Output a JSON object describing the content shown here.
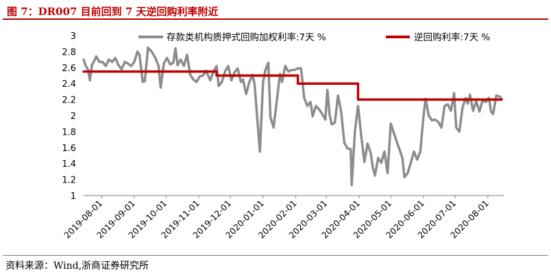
{
  "figure_title": "图 7：DR007 目前回到 7 天逆回购利率附近",
  "source_note": "资料来源：Wind,浙商证券研究所",
  "colors": {
    "title": "#C00000",
    "series_gray": "#8C8C8C",
    "series_red": "#C00000"
  },
  "chart_data": {
    "type": "line",
    "title": "",
    "xlabel": "",
    "ylabel": "",
    "ylim": [
      1,
      3
    ],
    "yticks": [
      "1",
      "1.2",
      "1.4",
      "1.6",
      "1.8",
      "2",
      "2.2",
      "2.4",
      "2.6",
      "2.8",
      "3"
    ],
    "xticks": [
      {
        "date": "2019-08-01",
        "label": "2019-08-01"
      },
      {
        "date": "2019-09-01",
        "label": "2019-09-01"
      },
      {
        "date": "2019-10-01",
        "label": "2019-10-01"
      },
      {
        "date": "2019-11-01",
        "label": "2019-11-01"
      },
      {
        "date": "2019-12-01",
        "label": "2019-12-01"
      },
      {
        "date": "2020-01-01",
        "label": "2020-01-01"
      },
      {
        "date": "2020-02-01",
        "label": "2020-02-01"
      },
      {
        "date": "2020-03-01",
        "label": "2020-03-01"
      },
      {
        "date": "2020-04-01",
        "label": "2020-04-01"
      },
      {
        "date": "2020-05-01",
        "label": "2020-05-01"
      },
      {
        "date": "2020-06-01",
        "label": "2020-06-01"
      },
      {
        "date": "2020-07-01",
        "label": "2020-07-01"
      },
      {
        "date": "2020-08-01",
        "label": "2020-08-01"
      }
    ],
    "grid": false,
    "legend_position": "top",
    "series": [
      {
        "name": "存款类机构质押式回购加权利率:7天 %",
        "color": "#8C8C8C",
        "points": [
          [
            "2019-07-15",
            2.7
          ],
          [
            "2019-07-17",
            2.62
          ],
          [
            "2019-07-19",
            2.58
          ],
          [
            "2019-07-21",
            2.44
          ],
          [
            "2019-07-23",
            2.64
          ],
          [
            "2019-07-25",
            2.68
          ],
          [
            "2019-07-27",
            2.74
          ],
          [
            "2019-07-30",
            2.67
          ],
          [
            "2019-08-02",
            2.67
          ],
          [
            "2019-08-05",
            2.62
          ],
          [
            "2019-08-08",
            2.7
          ],
          [
            "2019-08-11",
            2.67
          ],
          [
            "2019-08-14",
            2.72
          ],
          [
            "2019-08-17",
            2.63
          ],
          [
            "2019-08-20",
            2.58
          ],
          [
            "2019-08-23",
            2.67
          ],
          [
            "2019-08-26",
            2.65
          ],
          [
            "2019-08-29",
            2.62
          ],
          [
            "2019-09-01",
            2.67
          ],
          [
            "2019-09-04",
            2.8
          ],
          [
            "2019-09-06",
            2.76
          ],
          [
            "2019-09-09",
            2.42
          ],
          [
            "2019-09-11",
            2.43
          ],
          [
            "2019-09-14",
            2.85
          ],
          [
            "2019-09-18",
            2.79
          ],
          [
            "2019-09-21",
            2.72
          ],
          [
            "2019-09-24",
            2.62
          ],
          [
            "2019-09-26",
            2.35
          ],
          [
            "2019-09-29",
            2.65
          ],
          [
            "2019-10-02",
            2.72
          ],
          [
            "2019-10-05",
            2.64
          ],
          [
            "2019-10-08",
            2.66
          ],
          [
            "2019-10-10",
            2.84
          ],
          [
            "2019-10-12",
            2.63
          ],
          [
            "2019-10-15",
            2.7
          ],
          [
            "2019-10-18",
            2.62
          ],
          [
            "2019-10-21",
            2.76
          ],
          [
            "2019-10-24",
            2.51
          ],
          [
            "2019-10-27",
            2.45
          ],
          [
            "2019-10-30",
            2.42
          ],
          [
            "2019-11-02",
            2.49
          ],
          [
            "2019-11-05",
            2.5
          ],
          [
            "2019-11-08",
            2.56
          ],
          [
            "2019-11-12",
            2.44
          ],
          [
            "2019-11-15",
            2.55
          ],
          [
            "2019-11-18",
            2.62
          ],
          [
            "2019-11-20",
            2.37
          ],
          [
            "2019-11-23",
            2.42
          ],
          [
            "2019-11-26",
            2.55
          ],
          [
            "2019-11-29",
            2.62
          ],
          [
            "2019-12-02",
            2.44
          ],
          [
            "2019-12-05",
            2.54
          ],
          [
            "2019-12-08",
            2.59
          ],
          [
            "2019-12-11",
            2.42
          ],
          [
            "2019-12-13",
            2.45
          ],
          [
            "2019-12-16",
            2.27
          ],
          [
            "2019-12-19",
            2.42
          ],
          [
            "2019-12-22",
            2.51
          ],
          [
            "2019-12-24",
            2.39
          ],
          [
            "2019-12-26",
            2.05
          ],
          [
            "2019-12-29",
            1.55
          ],
          [
            "2020-01-01",
            2.41
          ],
          [
            "2020-01-03",
            2.56
          ],
          [
            "2020-01-06",
            2.66
          ],
          [
            "2020-01-08",
            1.98
          ],
          [
            "2020-01-11",
            1.85
          ],
          [
            "2020-01-14",
            2.18
          ],
          [
            "2020-01-17",
            2.52
          ],
          [
            "2020-01-19",
            2.42
          ],
          [
            "2020-01-22",
            2.62
          ],
          [
            "2020-01-25",
            2.55
          ],
          [
            "2020-01-28",
            2.57
          ],
          [
            "2020-01-31",
            2.57
          ],
          [
            "2020-02-03",
            2.59
          ],
          [
            "2020-02-06",
            2.59
          ],
          [
            "2020-02-09",
            2.22
          ],
          [
            "2020-02-12",
            2.12
          ],
          [
            "2020-02-15",
            2.17
          ],
          [
            "2020-02-17",
            1.99
          ],
          [
            "2020-02-20",
            2.12
          ],
          [
            "2020-02-23",
            2.08
          ],
          [
            "2020-02-26",
            2.02
          ],
          [
            "2020-02-29",
            1.95
          ],
          [
            "2020-03-02",
            2.32
          ],
          [
            "2020-03-04",
            2.02
          ],
          [
            "2020-03-06",
            1.89
          ],
          [
            "2020-03-09",
            1.91
          ],
          [
            "2020-03-12",
            2.25
          ],
          [
            "2020-03-15",
            2.05
          ],
          [
            "2020-03-18",
            1.66
          ],
          [
            "2020-03-21",
            1.59
          ],
          [
            "2020-03-24",
            1.58
          ],
          [
            "2020-03-25",
            1.13
          ],
          [
            "2020-03-28",
            1.8
          ],
          [
            "2020-03-31",
            2.12
          ],
          [
            "2020-04-03",
            1.75
          ],
          [
            "2020-04-06",
            1.42
          ],
          [
            "2020-04-09",
            1.65
          ],
          [
            "2020-04-12",
            1.53
          ],
          [
            "2020-04-14",
            1.35
          ],
          [
            "2020-04-16",
            1.25
          ],
          [
            "2020-04-19",
            1.47
          ],
          [
            "2020-04-22",
            1.41
          ],
          [
            "2020-04-25",
            1.55
          ],
          [
            "2020-04-28",
            1.28
          ],
          [
            "2020-05-01",
            1.9
          ],
          [
            "2020-05-04",
            1.78
          ],
          [
            "2020-05-07",
            1.66
          ],
          [
            "2020-05-10",
            1.55
          ],
          [
            "2020-05-12",
            1.47
          ],
          [
            "2020-05-14",
            1.23
          ],
          [
            "2020-05-17",
            1.28
          ],
          [
            "2020-05-20",
            1.41
          ],
          [
            "2020-05-23",
            1.55
          ],
          [
            "2020-05-26",
            1.45
          ],
          [
            "2020-05-29",
            1.55
          ],
          [
            "2020-06-01",
            1.99
          ],
          [
            "2020-06-03",
            2.21
          ],
          [
            "2020-06-06",
            2.0
          ],
          [
            "2020-06-09",
            1.94
          ],
          [
            "2020-06-12",
            1.95
          ],
          [
            "2020-06-15",
            1.92
          ],
          [
            "2020-06-18",
            1.85
          ],
          [
            "2020-06-21",
            2.12
          ],
          [
            "2020-06-24",
            2.14
          ],
          [
            "2020-06-27",
            2.06
          ],
          [
            "2020-06-30",
            2.28
          ],
          [
            "2020-07-02",
            1.85
          ],
          [
            "2020-07-05",
            1.8
          ],
          [
            "2020-07-08",
            2.1
          ],
          [
            "2020-07-11",
            2.22
          ],
          [
            "2020-07-13",
            2.15
          ],
          [
            "2020-07-15",
            2.26
          ],
          [
            "2020-07-18",
            2.06
          ],
          [
            "2020-07-21",
            2.18
          ],
          [
            "2020-07-24",
            2.05
          ],
          [
            "2020-07-27",
            2.19
          ],
          [
            "2020-07-30",
            2.17
          ],
          [
            "2020-08-02",
            2.22
          ],
          [
            "2020-08-04",
            2.05
          ],
          [
            "2020-08-06",
            2.02
          ],
          [
            "2020-08-09",
            2.25
          ],
          [
            "2020-08-12",
            2.24
          ],
          [
            "2020-08-14",
            2.21
          ]
        ]
      },
      {
        "name": "逆回购利率:7天 %",
        "color": "#C00000",
        "step": true,
        "points": [
          [
            "2019-07-15",
            2.55
          ],
          [
            "2019-11-18",
            2.5
          ],
          [
            "2020-02-03",
            2.4
          ],
          [
            "2020-03-31",
            2.2
          ],
          [
            "2020-08-14",
            2.2
          ]
        ]
      }
    ]
  }
}
